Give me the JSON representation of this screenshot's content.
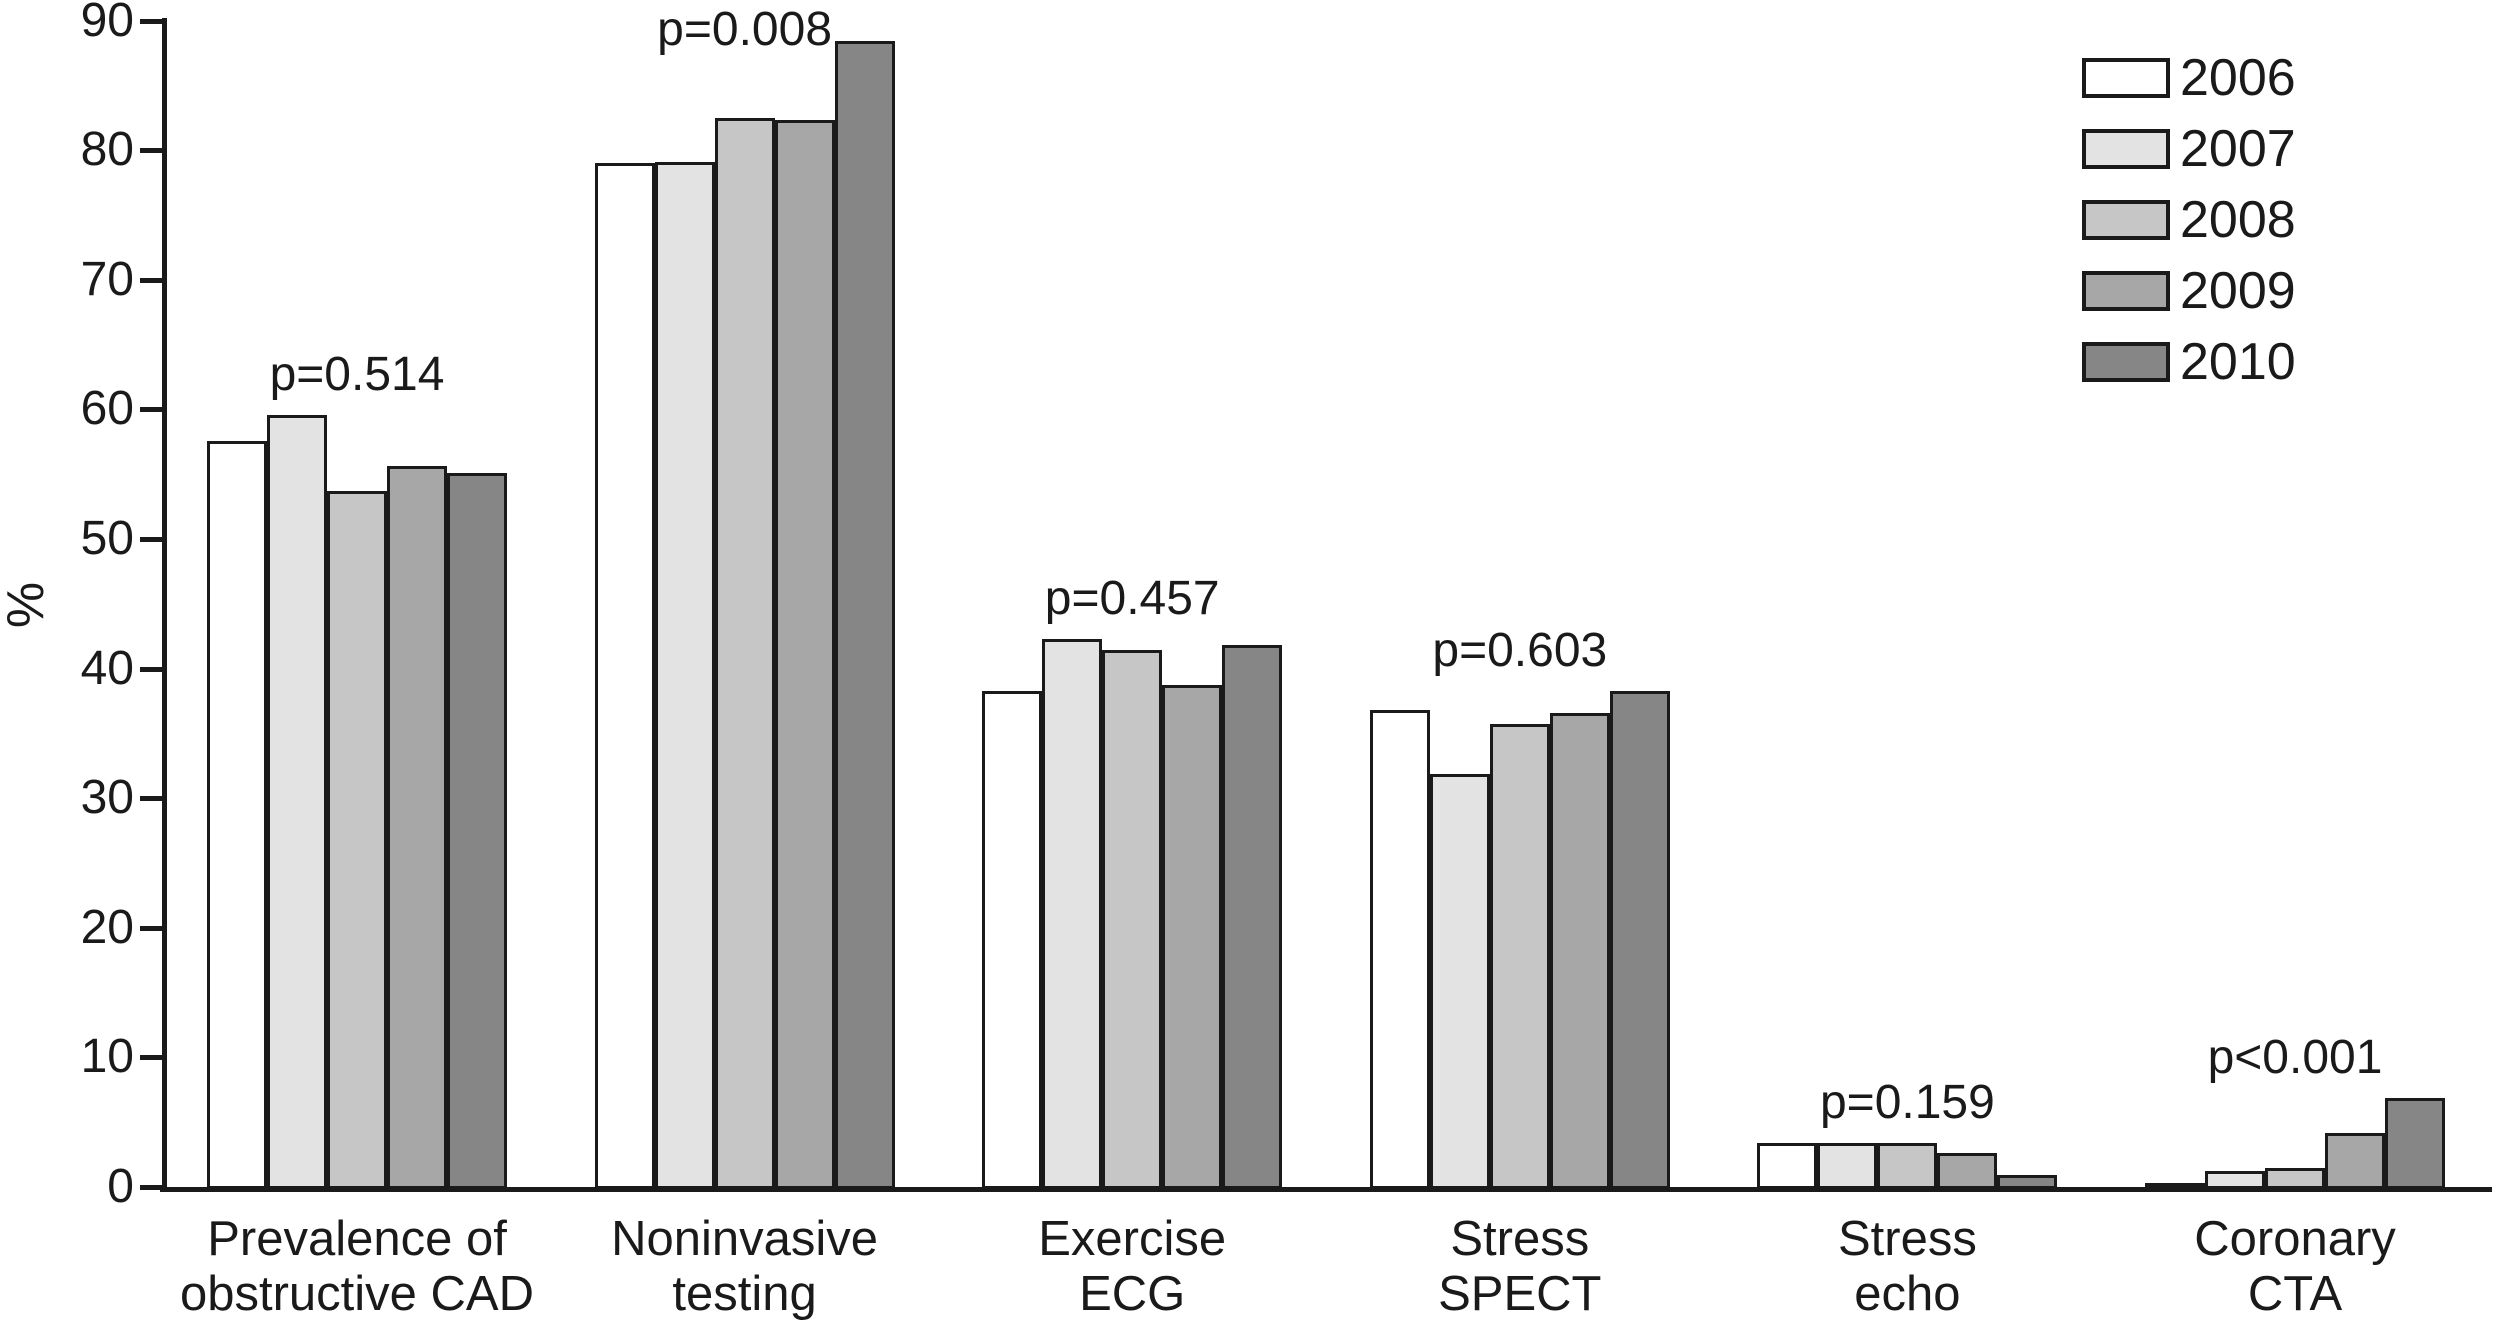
{
  "chart_data": {
    "type": "bar",
    "title": "",
    "xlabel": "",
    "ylabel": "%",
    "ylim": [
      0,
      90
    ],
    "yticks": [
      0,
      10,
      20,
      30,
      40,
      50,
      60,
      70,
      80,
      90
    ],
    "grid": false,
    "legend_position": "top-right",
    "ink_color": "#1a1a1a",
    "background_color": "#ffffff",
    "categories": [
      {
        "label_lines": [
          "Prevalence of",
          "obstructive CAD"
        ],
        "p_label": "p=0.514"
      },
      {
        "label_lines": [
          "Noninvasive",
          "testing"
        ],
        "p_label": "p=0.008"
      },
      {
        "label_lines": [
          "Exercise",
          "ECG"
        ],
        "p_label": "p=0.457"
      },
      {
        "label_lines": [
          "Stress",
          "SPECT"
        ],
        "p_label": "p=0.603"
      },
      {
        "label_lines": [
          "Stress",
          "echo"
        ],
        "p_label": "p=0.159"
      },
      {
        "label_lines": [
          "Coronary",
          "CTA"
        ],
        "p_label": "p<0.001"
      }
    ],
    "series": [
      {
        "name": "2006",
        "color": "#ffffff",
        "values": [
          57.6,
          79.0,
          38.3,
          36.8,
          3.4,
          0.3
        ]
      },
      {
        "name": "2007",
        "color": "#e3e3e3",
        "values": [
          59.6,
          79.1,
          42.3,
          31.9,
          3.4,
          1.2
        ]
      },
      {
        "name": "2008",
        "color": "#c6c6c6",
        "values": [
          53.7,
          82.5,
          41.4,
          35.7,
          3.4,
          1.5
        ]
      },
      {
        "name": "2009",
        "color": "#a7a7a7",
        "values": [
          55.6,
          82.3,
          38.7,
          36.6,
          2.6,
          4.2
        ]
      },
      {
        "name": "2010",
        "color": "#868686",
        "values": [
          55.1,
          88.4,
          41.8,
          38.3,
          0.9,
          6.9
        ]
      }
    ]
  }
}
